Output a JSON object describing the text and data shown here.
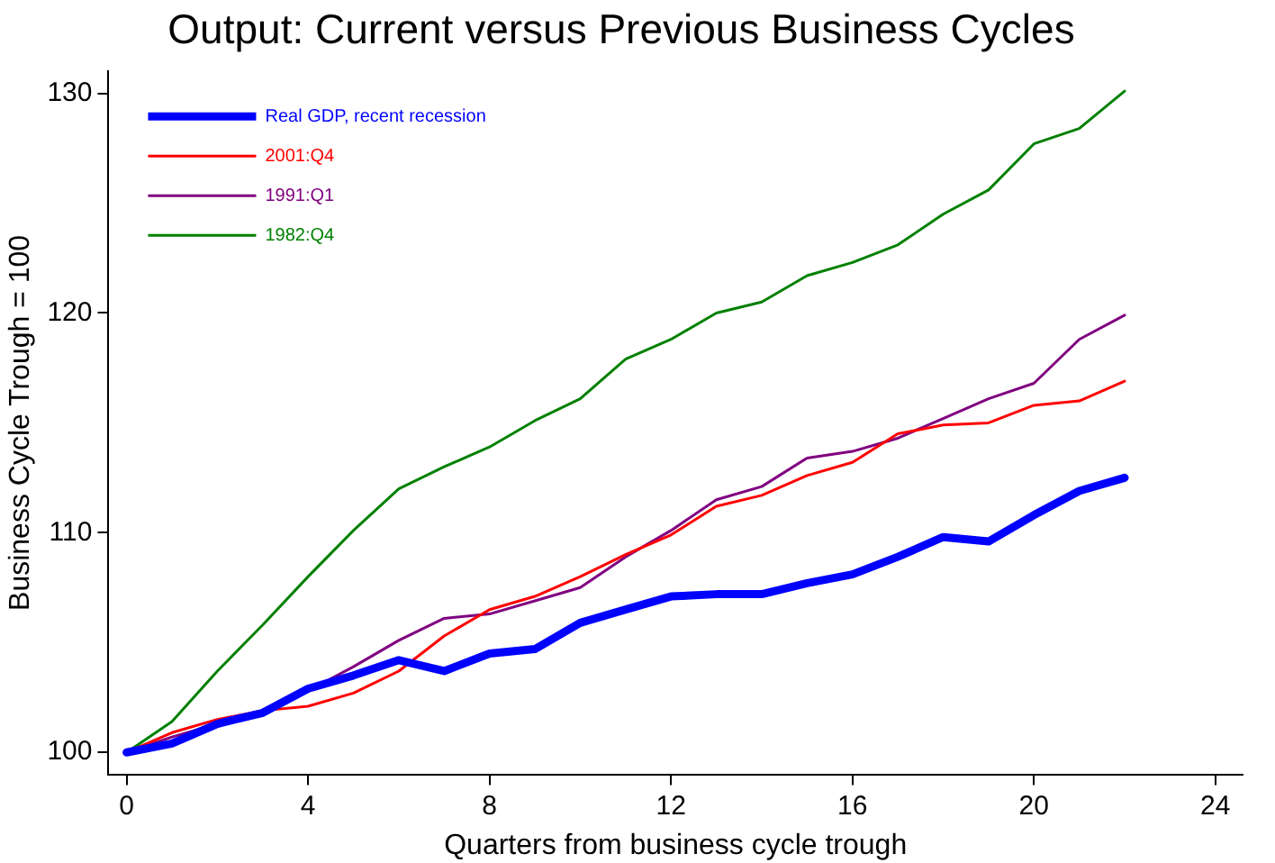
{
  "chart_data": {
    "type": "line",
    "title": "Output: Current versus Previous Business Cycles",
    "xlabel": "Quarters from business cycle trough",
    "ylabel": "Business Cycle Trough = 100",
    "x": [
      0,
      1,
      2,
      3,
      4,
      5,
      6,
      7,
      8,
      9,
      10,
      11,
      12,
      13,
      14,
      15,
      16,
      17,
      18,
      19,
      20,
      21,
      22
    ],
    "series": [
      {
        "name": "Real GDP, recent recession",
        "color": "#0000ff",
        "values": [
          100,
          100.4,
          101.3,
          101.8,
          102.9,
          103.5,
          104.2,
          103.7,
          104.5,
          104.7,
          105.9,
          106.5,
          107.1,
          107.2,
          107.2,
          107.7,
          108.1,
          108.9,
          109.8,
          109.6,
          110.8,
          111.9,
          112.5
        ]
      },
      {
        "name": "2001:Q4",
        "color": "#ff0000",
        "values": [
          100,
          100.9,
          101.5,
          101.9,
          102.1,
          102.7,
          103.7,
          105.3,
          106.5,
          107.1,
          108.0,
          109.0,
          109.9,
          111.2,
          111.7,
          112.6,
          113.2,
          114.5,
          114.9,
          115.0,
          115.8,
          116.0,
          116.9
        ]
      },
      {
        "name": "1991:Q1",
        "color": "#800080",
        "values": [
          100,
          100.7,
          101.3,
          101.7,
          102.8,
          103.9,
          105.1,
          106.1,
          106.3,
          106.9,
          107.5,
          108.9,
          110.1,
          111.5,
          112.1,
          113.4,
          113.7,
          114.3,
          115.2,
          116.1,
          116.8,
          118.8,
          119.9
        ]
      },
      {
        "name": "1982:Q4",
        "color": "#008000",
        "values": [
          100,
          101.4,
          103.7,
          105.8,
          108.0,
          110.1,
          112.0,
          113.0,
          113.9,
          115.1,
          116.1,
          117.9,
          118.8,
          120.0,
          120.5,
          121.7,
          122.3,
          123.1,
          124.5,
          125.6,
          127.7,
          128.4,
          130.1
        ]
      }
    ],
    "xlim": [
      -0.4,
      24.6
    ],
    "xticks": [
      0,
      4,
      8,
      12,
      16,
      20,
      24
    ],
    "ylim": [
      99,
      131
    ],
    "yticks": [
      100,
      110,
      120,
      130
    ],
    "grid": false,
    "legend": "top left",
    "marker": "none",
    "line_style": "solid"
  }
}
